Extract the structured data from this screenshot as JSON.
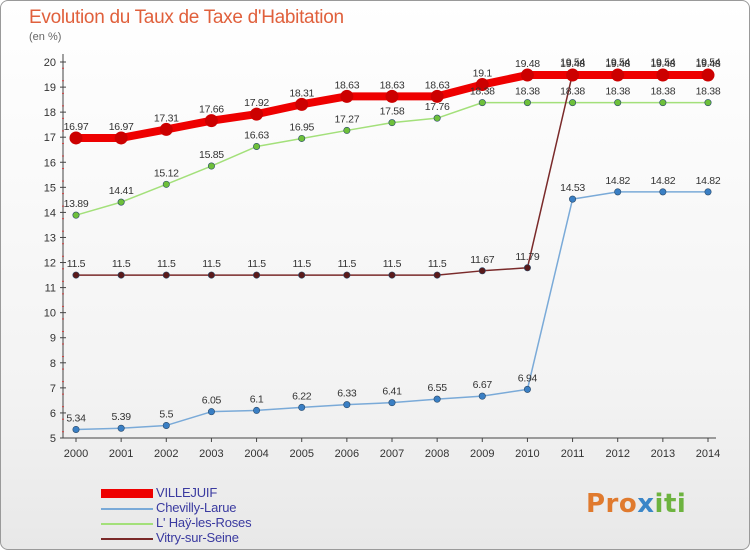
{
  "title": "Evolution du Taux de Taxe d'Habitation",
  "subtitle": "(en %)",
  "logo": {
    "part1": "Pro",
    "part2": "x",
    "part3": "iti"
  },
  "chart_data": {
    "type": "line",
    "title": "Evolution du Taux de Taxe d'Habitation",
    "ylabel": "(en %)",
    "xlabel": "",
    "ylim": [
      5,
      20
    ],
    "yticks": [
      5,
      6,
      7,
      8,
      9,
      10,
      11,
      12,
      13,
      14,
      15,
      16,
      17,
      18,
      19,
      20
    ],
    "x": [
      "2000",
      "2001",
      "2002",
      "2003",
      "2004",
      "2005",
      "2006",
      "2007",
      "2008",
      "2009",
      "2010",
      "2011",
      "2012",
      "2013",
      "2014"
    ],
    "grid": false,
    "legend_position": "bottom-left",
    "series": [
      {
        "name": "VILLEJUIF",
        "color": "#ee0000",
        "marker": "#cc0000",
        "width": 8,
        "values": [
          16.97,
          16.97,
          17.31,
          17.66,
          17.92,
          18.31,
          18.63,
          18.63,
          18.63,
          19.1,
          19.48,
          19.48,
          19.48,
          19.48,
          19.48
        ]
      },
      {
        "name": "Chevilly-Larue",
        "color": "#7aaad8",
        "marker": "#3a7fc4",
        "width": 1.5,
        "values": [
          5.34,
          5.39,
          5.5,
          6.05,
          6.1,
          6.22,
          6.33,
          6.41,
          6.55,
          6.67,
          6.94,
          14.53,
          14.82,
          14.82,
          14.82
        ]
      },
      {
        "name": "L' Haÿ-les-Roses",
        "color": "#a3e07a",
        "marker": "#6ec03a",
        "width": 1.5,
        "values": [
          13.89,
          14.41,
          15.12,
          15.85,
          16.63,
          16.95,
          17.27,
          17.58,
          17.76,
          18.38,
          18.38,
          18.38,
          18.38,
          18.38,
          18.38
        ]
      },
      {
        "name": "Vitry-sur-Seine",
        "color": "#7a2a2a",
        "marker": "#5a1a1a",
        "width": 1.5,
        "values": [
          11.5,
          11.5,
          11.5,
          11.5,
          11.5,
          11.5,
          11.5,
          11.5,
          11.5,
          11.67,
          11.79,
          19.54,
          19.54,
          19.54,
          19.54
        ]
      }
    ],
    "data_labels": [
      {
        "series": 0,
        "labels": [
          "16.97",
          "16.97",
          "17.31",
          "17.66",
          "17.92",
          "18.31",
          "18.63",
          "18.63",
          "18.63",
          "19.1",
          "19.48",
          "19.48",
          "19.48",
          "19.48",
          "19.48"
        ]
      },
      {
        "series": 1,
        "labels": [
          "5.34",
          "5.39",
          "5.5",
          "6.05",
          "6.1",
          "6.22",
          "6.33",
          "6.41",
          "6.55",
          "6.67",
          "6.94",
          "14.53",
          "14.82",
          "14.82",
          "14.82"
        ]
      },
      {
        "series": 2,
        "labels": [
          "13.89",
          "14.41",
          "15.12",
          "15.85",
          "16.63",
          "16.95",
          "17.27",
          "17.58",
          "17.76",
          "18.38",
          "18.38",
          "18.38",
          "18.38",
          "18.38",
          "18.38"
        ]
      },
      {
        "series": 3,
        "labels": [
          "11.5",
          "11.5",
          "11.5",
          "11.5",
          "11.5",
          "11.5",
          "11.5",
          "11.5",
          "11.5",
          "11.67",
          "11.79",
          "19.54",
          "19.54",
          "19.54",
          "19.54"
        ]
      }
    ]
  }
}
